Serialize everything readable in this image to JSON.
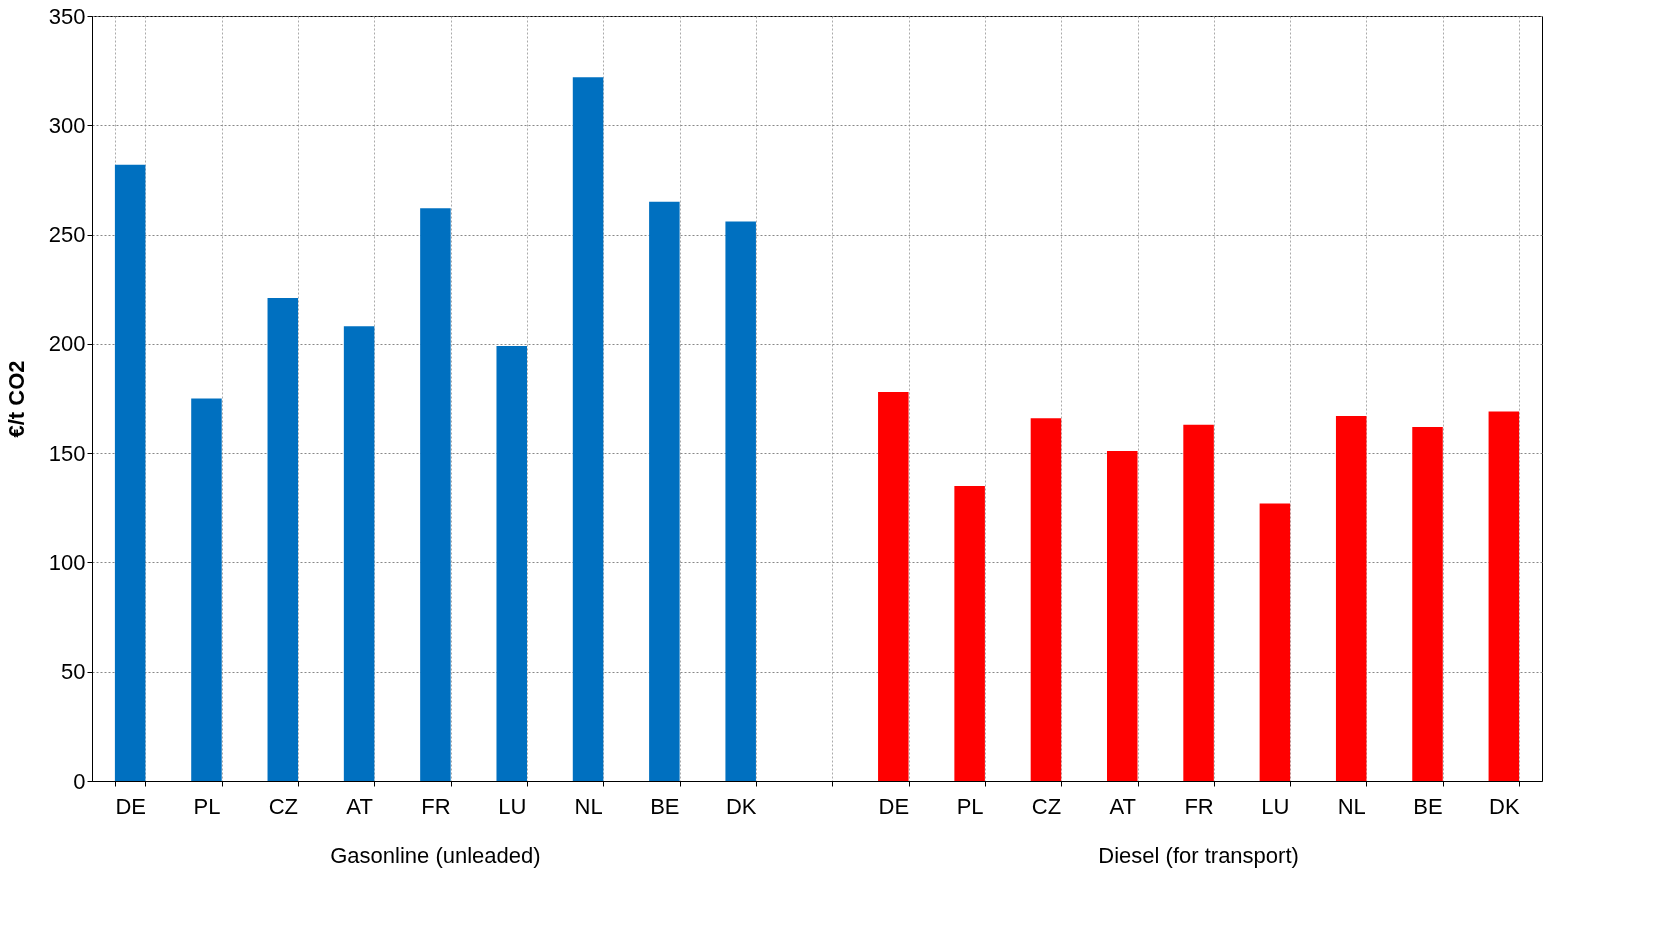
{
  "chart_data": {
    "type": "bar",
    "ylabel": "€/t CO2",
    "categories": [
      "DE",
      "PL",
      "CZ",
      "AT",
      "FR",
      "LU",
      "NL",
      "BE",
      "DK",
      null,
      "DE",
      "PL",
      "CZ",
      "AT",
      "FR",
      "LU",
      "NL",
      "BE",
      "DK"
    ],
    "values": [
      282,
      175,
      221,
      208,
      262,
      199,
      322,
      265,
      256,
      null,
      178,
      135,
      166,
      151,
      163,
      127,
      167,
      162,
      169
    ],
    "colors": [
      "#0070c0",
      "#0070c0",
      "#0070c0",
      "#0070c0",
      "#0070c0",
      "#0070c0",
      "#0070c0",
      "#0070c0",
      "#0070c0",
      null,
      "#ff0000",
      "#ff0000",
      "#ff0000",
      "#ff0000",
      "#ff0000",
      "#ff0000",
      "#ff0000",
      "#ff0000",
      "#ff0000"
    ],
    "ylim": [
      0,
      350
    ],
    "yticks": [
      0,
      50,
      100,
      150,
      200,
      250,
      300,
      350
    ],
    "grid": true,
    "annotations": [
      "Gasonline (unleaded)",
      "Diesel (for transport)"
    ]
  }
}
